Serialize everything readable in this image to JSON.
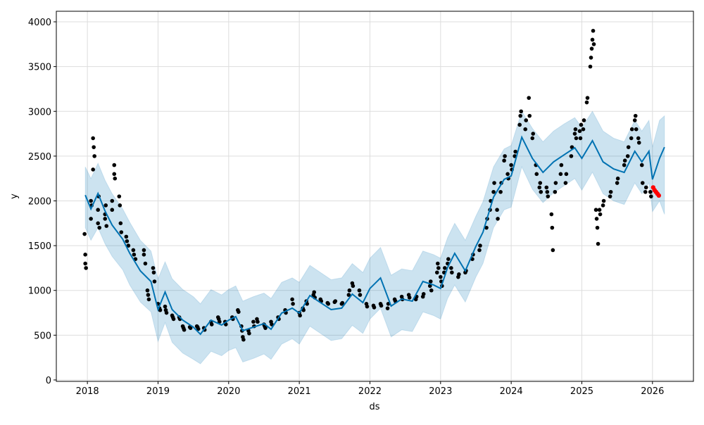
{
  "chart_data": {
    "type": "line",
    "title": "",
    "xlabel": "ds",
    "ylabel": "y",
    "xlim": [
      2017.56,
      2026.58
    ],
    "ylim": [
      -16,
      4118
    ],
    "grid": true,
    "x_ticks": [
      2018,
      2019,
      2020,
      2021,
      2022,
      2023,
      2024,
      2025,
      2026
    ],
    "x_tick_labels": [
      "2018",
      "2019",
      "2020",
      "2021",
      "2022",
      "2023",
      "2024",
      "2025",
      "2026"
    ],
    "y_ticks": [
      0,
      500,
      1000,
      1500,
      2000,
      2500,
      3000,
      3500,
      4000
    ],
    "y_tick_labels": [
      "0",
      "500",
      "1000",
      "1500",
      "2000",
      "2500",
      "3000",
      "3500",
      "4000"
    ],
    "colors": {
      "forecast": "#0072B2",
      "band": "#0072B2",
      "observed": "#000000",
      "actual_future": "#ff0000",
      "grid": "#dddddd"
    },
    "forecast": {
      "name": "yhat",
      "x": [
        2017.97,
        2018.05,
        2018.15,
        2018.25,
        2018.35,
        2018.5,
        2018.6,
        2018.75,
        2018.9,
        2019.0,
        2019.1,
        2019.2,
        2019.35,
        2019.5,
        2019.6,
        2019.75,
        2019.9,
        2020.0,
        2020.1,
        2020.2,
        2020.35,
        2020.5,
        2020.6,
        2020.75,
        2020.9,
        2021.0,
        2021.15,
        2021.3,
        2021.45,
        2021.6,
        2021.75,
        2021.9,
        2022.0,
        2022.15,
        2022.3,
        2022.45,
        2022.6,
        2022.75,
        2022.9,
        2023.0,
        2023.1,
        2023.2,
        2023.35,
        2023.5,
        2023.6,
        2023.75,
        2023.9,
        2024.0,
        2024.15,
        2024.3,
        2024.45,
        2024.6,
        2024.75,
        2024.9,
        2025.0,
        2025.15,
        2025.3,
        2025.45,
        2025.6,
        2025.75,
        2025.85,
        2025.95,
        2026.0,
        2026.1,
        2026.17
      ],
      "y": [
        2065,
        1910,
        2083,
        1886,
        1730,
        1572,
        1414,
        1218,
        1100,
        786,
        982,
        786,
        668,
        590,
        511,
        668,
        613,
        668,
        707,
        550,
        590,
        629,
        566,
        747,
        802,
        747,
        943,
        864,
        786,
        802,
        959,
        864,
        1022,
        1139,
        825,
        904,
        880,
        1100,
        1061,
        1022,
        1257,
        1414,
        1218,
        1493,
        1650,
        2043,
        2240,
        2279,
        2711,
        2475,
        2318,
        2436,
        2515,
        2593,
        2475,
        2672,
        2436,
        2357,
        2318,
        2554,
        2436,
        2554,
        2240,
        2475,
        2600
      ],
      "lower": [
        1700,
        1560,
        1700,
        1520,
        1380,
        1230,
        1060,
        870,
        760,
        430,
        640,
        420,
        300,
        230,
        180,
        320,
        270,
        330,
        360,
        200,
        240,
        290,
        230,
        400,
        460,
        400,
        600,
        520,
        440,
        460,
        610,
        520,
        680,
        800,
        480,
        560,
        540,
        760,
        720,
        680,
        910,
        1060,
        870,
        1150,
        1300,
        1700,
        1900,
        1930,
        2380,
        2130,
        1980,
        2090,
        2170,
        2250,
        2120,
        2320,
        2080,
        2000,
        1960,
        2200,
        2080,
        2200,
        1880,
        2000,
        1850
      ],
      "upper": [
        2380,
        2250,
        2420,
        2230,
        2080,
        1910,
        1760,
        1560,
        1440,
        1130,
        1320,
        1130,
        1010,
        930,
        850,
        1010,
        950,
        1010,
        1050,
        880,
        930,
        970,
        910,
        1090,
        1140,
        1090,
        1280,
        1200,
        1120,
        1140,
        1300,
        1200,
        1360,
        1480,
        1170,
        1240,
        1220,
        1440,
        1400,
        1360,
        1590,
        1750,
        1560,
        1830,
        1990,
        2380,
        2580,
        2620,
        3000,
        2810,
        2660,
        2780,
        2860,
        2930,
        2820,
        3000,
        2780,
        2700,
        2660,
        2900,
        2780,
        2900,
        2600,
        2900,
        2950
      ]
    },
    "observed": {
      "name": "y",
      "points": [
        [
          2017.97,
          1400
        ],
        [
          2017.97,
          1300
        ],
        [
          2017.98,
          1250
        ],
        [
          2017.96,
          1630
        ],
        [
          2018.05,
          1800
        ],
        [
          2018.05,
          2000
        ],
        [
          2018.06,
          1950
        ],
        [
          2018.08,
          2700
        ],
        [
          2018.09,
          2600
        ],
        [
          2018.1,
          2500
        ],
        [
          2018.08,
          2350
        ],
        [
          2018.15,
          1900
        ],
        [
          2018.15,
          1750
        ],
        [
          2018.16,
          2050
        ],
        [
          2018.17,
          1700
        ],
        [
          2018.25,
          1850
        ],
        [
          2018.25,
          1800
        ],
        [
          2018.26,
          1950
        ],
        [
          2018.27,
          1720
        ],
        [
          2018.35,
          1900
        ],
        [
          2018.35,
          2000
        ],
        [
          2018.38,
          2400
        ],
        [
          2018.38,
          2300
        ],
        [
          2018.39,
          2250
        ],
        [
          2018.45,
          2050
        ],
        [
          2018.46,
          1950
        ],
        [
          2018.47,
          1750
        ],
        [
          2018.48,
          1650
        ],
        [
          2018.55,
          1600
        ],
        [
          2018.56,
          1550
        ],
        [
          2018.58,
          1500
        ],
        [
          2018.65,
          1450
        ],
        [
          2018.66,
          1400
        ],
        [
          2018.68,
          1350
        ],
        [
          2018.8,
          1450
        ],
        [
          2018.8,
          1400
        ],
        [
          2018.82,
          1300
        ],
        [
          2018.85,
          1000
        ],
        [
          2018.86,
          950
        ],
        [
          2018.87,
          900
        ],
        [
          2018.93,
          1250
        ],
        [
          2018.94,
          1200
        ],
        [
          2018.95,
          1100
        ],
        [
          2019.0,
          850
        ],
        [
          2019.02,
          800
        ],
        [
          2019.03,
          780
        ],
        [
          2019.1,
          820
        ],
        [
          2019.11,
          780
        ],
        [
          2019.12,
          750
        ],
        [
          2019.2,
          720
        ],
        [
          2019.21,
          700
        ],
        [
          2019.22,
          680
        ],
        [
          2019.3,
          700
        ],
        [
          2019.31,
          680
        ],
        [
          2019.35,
          600
        ],
        [
          2019.36,
          580
        ],
        [
          2019.37,
          560
        ],
        [
          2019.45,
          590
        ],
        [
          2019.46,
          580
        ],
        [
          2019.55,
          600
        ],
        [
          2019.56,
          590
        ],
        [
          2019.57,
          570
        ],
        [
          2019.65,
          580
        ],
        [
          2019.66,
          560
        ],
        [
          2019.75,
          650
        ],
        [
          2019.76,
          620
        ],
        [
          2019.85,
          700
        ],
        [
          2019.86,
          680
        ],
        [
          2019.87,
          650
        ],
        [
          2019.95,
          650
        ],
        [
          2019.96,
          620
        ],
        [
          2020.05,
          700
        ],
        [
          2020.06,
          680
        ],
        [
          2020.13,
          780
        ],
        [
          2020.14,
          760
        ],
        [
          2020.18,
          600
        ],
        [
          2020.19,
          550
        ],
        [
          2020.2,
          480
        ],
        [
          2020.21,
          450
        ],
        [
          2020.28,
          550
        ],
        [
          2020.29,
          520
        ],
        [
          2020.35,
          650
        ],
        [
          2020.36,
          600
        ],
        [
          2020.4,
          680
        ],
        [
          2020.41,
          650
        ],
        [
          2020.5,
          620
        ],
        [
          2020.51,
          600
        ],
        [
          2020.52,
          580
        ],
        [
          2020.6,
          650
        ],
        [
          2020.61,
          620
        ],
        [
          2020.7,
          700
        ],
        [
          2020.71,
          680
        ],
        [
          2020.8,
          780
        ],
        [
          2020.81,
          750
        ],
        [
          2020.9,
          900
        ],
        [
          2020.91,
          850
        ],
        [
          2021.0,
          750
        ],
        [
          2021.01,
          720
        ],
        [
          2021.05,
          800
        ],
        [
          2021.06,
          780
        ],
        [
          2021.1,
          880
        ],
        [
          2021.11,
          850
        ],
        [
          2021.2,
          950
        ],
        [
          2021.21,
          980
        ],
        [
          2021.22,
          920
        ],
        [
          2021.3,
          900
        ],
        [
          2021.31,
          880
        ],
        [
          2021.4,
          860
        ],
        [
          2021.41,
          850
        ],
        [
          2021.5,
          870
        ],
        [
          2021.51,
          880
        ],
        [
          2021.6,
          850
        ],
        [
          2021.61,
          860
        ],
        [
          2021.7,
          950
        ],
        [
          2021.71,
          1000
        ],
        [
          2021.75,
          1080
        ],
        [
          2021.76,
          1050
        ],
        [
          2021.85,
          1000
        ],
        [
          2021.86,
          950
        ],
        [
          2021.95,
          850
        ],
        [
          2021.96,
          820
        ],
        [
          2022.05,
          830
        ],
        [
          2022.06,
          810
        ],
        [
          2022.15,
          850
        ],
        [
          2022.16,
          830
        ],
        [
          2022.25,
          800
        ],
        [
          2022.26,
          850
        ],
        [
          2022.35,
          900
        ],
        [
          2022.36,
          880
        ],
        [
          2022.45,
          930
        ],
        [
          2022.46,
          900
        ],
        [
          2022.55,
          950
        ],
        [
          2022.56,
          920
        ],
        [
          2022.65,
          900
        ],
        [
          2022.66,
          930
        ],
        [
          2022.75,
          930
        ],
        [
          2022.76,
          960
        ],
        [
          2022.85,
          1050
        ],
        [
          2022.86,
          1100
        ],
        [
          2022.87,
          1000
        ],
        [
          2022.95,
          1200
        ],
        [
          2022.96,
          1300
        ],
        [
          2022.97,
          1250
        ],
        [
          2023.0,
          1150
        ],
        [
          2023.01,
          1100
        ],
        [
          2023.02,
          1050
        ],
        [
          2023.05,
          1200
        ],
        [
          2023.06,
          1250
        ],
        [
          2023.1,
          1300
        ],
        [
          2023.11,
          1350
        ],
        [
          2023.15,
          1250
        ],
        [
          2023.16,
          1200
        ],
        [
          2023.25,
          1150
        ],
        [
          2023.26,
          1180
        ],
        [
          2023.35,
          1200
        ],
        [
          2023.36,
          1220
        ],
        [
          2023.45,
          1350
        ],
        [
          2023.46,
          1400
        ],
        [
          2023.55,
          1450
        ],
        [
          2023.56,
          1500
        ],
        [
          2023.65,
          1700
        ],
        [
          2023.66,
          1800
        ],
        [
          2023.7,
          1900
        ],
        [
          2023.71,
          2000
        ],
        [
          2023.75,
          2100
        ],
        [
          2023.76,
          2200
        ],
        [
          2023.8,
          1900
        ],
        [
          2023.81,
          1800
        ],
        [
          2023.85,
          2100
        ],
        [
          2023.86,
          2200
        ],
        [
          2023.9,
          2450
        ],
        [
          2023.91,
          2500
        ],
        [
          2023.95,
          2300
        ],
        [
          2023.96,
          2250
        ],
        [
          2024.0,
          2400
        ],
        [
          2024.01,
          2350
        ],
        [
          2024.05,
          2500
        ],
        [
          2024.06,
          2550
        ],
        [
          2024.12,
          2850
        ],
        [
          2024.13,
          2950
        ],
        [
          2024.14,
          3000
        ],
        [
          2024.2,
          2800
        ],
        [
          2024.21,
          2900
        ],
        [
          2024.25,
          3150
        ],
        [
          2024.26,
          2950
        ],
        [
          2024.3,
          2700
        ],
        [
          2024.31,
          2750
        ],
        [
          2024.35,
          2400
        ],
        [
          2024.36,
          2300
        ],
        [
          2024.4,
          2150
        ],
        [
          2024.41,
          2200
        ],
        [
          2024.42,
          2100
        ],
        [
          2024.5,
          2150
        ],
        [
          2024.51,
          2100
        ],
        [
          2024.52,
          2050
        ],
        [
          2024.57,
          1850
        ],
        [
          2024.58,
          1700
        ],
        [
          2024.59,
          1450
        ],
        [
          2024.62,
          2100
        ],
        [
          2024.63,
          2200
        ],
        [
          2024.7,
          2300
        ],
        [
          2024.71,
          2400
        ],
        [
          2024.77,
          2200
        ],
        [
          2024.78,
          2300
        ],
        [
          2024.85,
          2500
        ],
        [
          2024.86,
          2600
        ],
        [
          2024.9,
          2750
        ],
        [
          2024.91,
          2800
        ],
        [
          2024.92,
          2700
        ],
        [
          2024.97,
          2780
        ],
        [
          2024.98,
          2700
        ],
        [
          2024.99,
          2850
        ],
        [
          2025.02,
          2800
        ],
        [
          2025.03,
          2900
        ],
        [
          2025.07,
          3100
        ],
        [
          2025.08,
          3150
        ],
        [
          2025.12,
          3500
        ],
        [
          2025.13,
          3600
        ],
        [
          2025.14,
          3700
        ],
        [
          2025.15,
          3800
        ],
        [
          2025.16,
          3900
        ],
        [
          2025.17,
          3750
        ],
        [
          2025.2,
          1900
        ],
        [
          2025.21,
          1800
        ],
        [
          2025.22,
          1700
        ],
        [
          2025.23,
          1520
        ],
        [
          2025.25,
          1900
        ],
        [
          2025.26,
          1850
        ],
        [
          2025.3,
          1950
        ],
        [
          2025.31,
          2000
        ],
        [
          2025.4,
          2050
        ],
        [
          2025.41,
          2100
        ],
        [
          2025.5,
          2200
        ],
        [
          2025.51,
          2250
        ],
        [
          2025.6,
          2400
        ],
        [
          2025.61,
          2450
        ],
        [
          2025.65,
          2500
        ],
        [
          2025.66,
          2600
        ],
        [
          2025.7,
          2700
        ],
        [
          2025.71,
          2800
        ],
        [
          2025.75,
          2900
        ],
        [
          2025.76,
          2950
        ],
        [
          2025.77,
          2800
        ],
        [
          2025.8,
          2700
        ],
        [
          2025.81,
          2650
        ],
        [
          2025.85,
          2400
        ],
        [
          2025.86,
          2200
        ],
        [
          2025.9,
          2100
        ],
        [
          2025.91,
          2150
        ],
        [
          2025.97,
          2100
        ],
        [
          2025.98,
          2050
        ]
      ]
    },
    "actual_future": {
      "name": "actual",
      "points": [
        [
          2026.01,
          2150
        ],
        [
          2026.03,
          2120
        ],
        [
          2026.05,
          2100
        ],
        [
          2026.07,
          2080
        ],
        [
          2026.09,
          2060
        ]
      ]
    }
  }
}
